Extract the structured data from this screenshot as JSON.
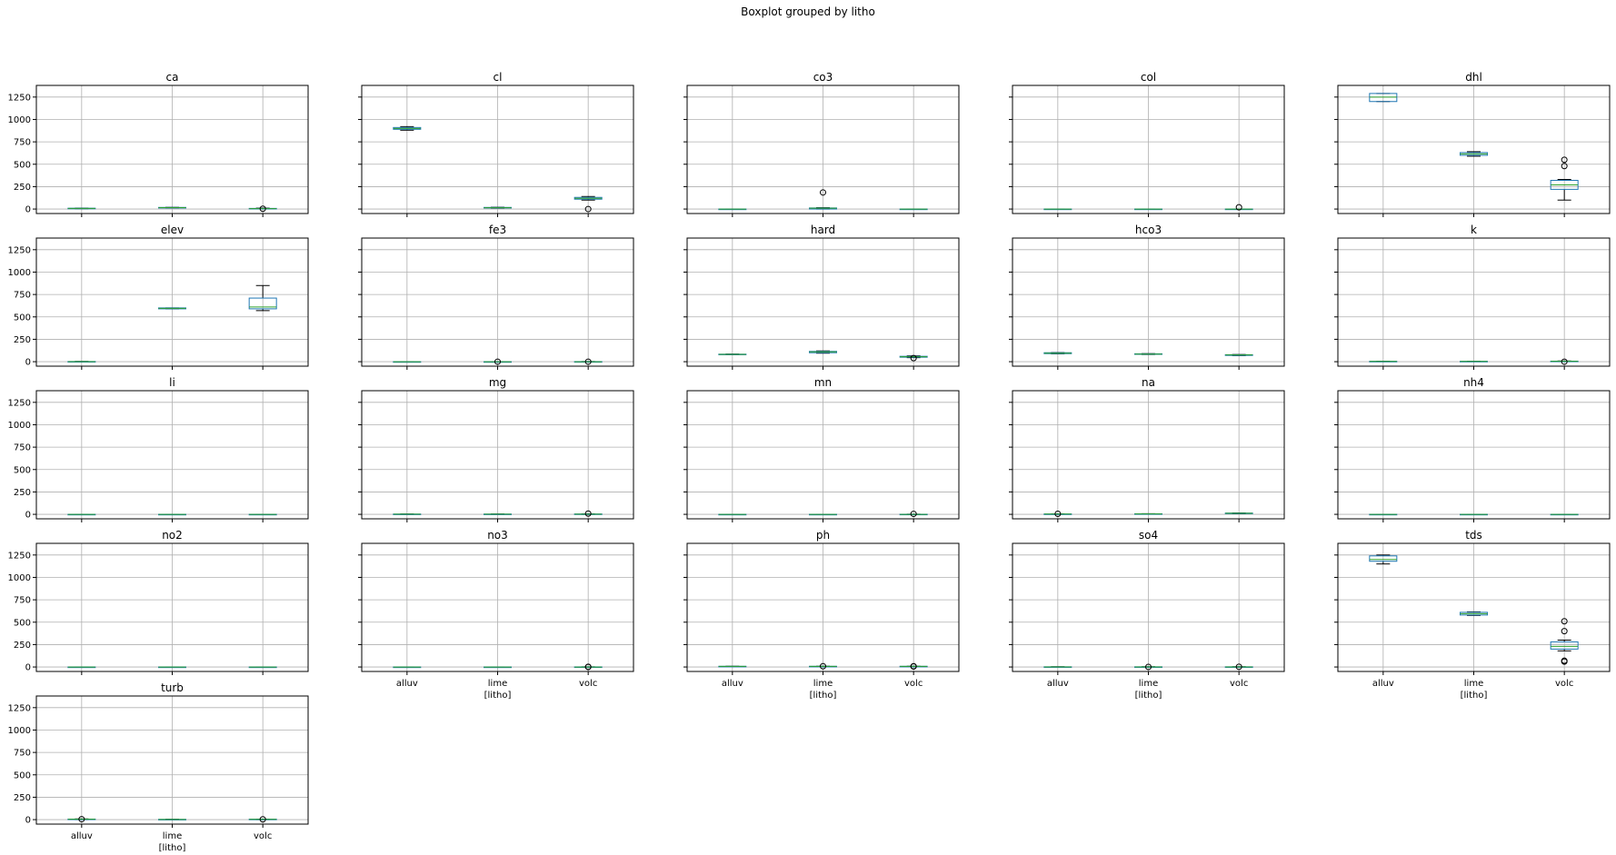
{
  "chart_data": {
    "type": "boxplot",
    "suptitle": "Boxplot grouped by litho",
    "xlabel": "[litho]",
    "categories": [
      "alluv",
      "lime",
      "volc"
    ],
    "ylim": [
      -50,
      1380
    ],
    "yticks": [
      0,
      250,
      500,
      750,
      1000,
      1250
    ],
    "grid": true,
    "colors": {
      "box": "#1f77b4",
      "median": "#2ca02c",
      "whisker": "#000000",
      "flier": "#000000",
      "grid": "#b0b0b0"
    },
    "panels": [
      {
        "title": "ca",
        "boxes": [
          {
            "q1": 5,
            "median": 7,
            "q3": 9,
            "whislo": 4,
            "whishi": 10,
            "fliers": []
          },
          {
            "q1": 14,
            "median": 16,
            "q3": 18,
            "whislo": 13,
            "whishi": 19,
            "fliers": []
          },
          {
            "q1": 3,
            "median": 5,
            "q3": 7,
            "whislo": 1,
            "whishi": 10,
            "fliers": [
              3
            ]
          }
        ]
      },
      {
        "title": "cl",
        "boxes": [
          {
            "q1": 890,
            "median": 900,
            "q3": 910,
            "whislo": 880,
            "whishi": 920,
            "fliers": []
          },
          {
            "q1": 12,
            "median": 15,
            "q3": 18,
            "whislo": 10,
            "whishi": 20,
            "fliers": []
          },
          {
            "q1": 110,
            "median": 120,
            "q3": 130,
            "whislo": 100,
            "whishi": 140,
            "fliers": [
              0
            ]
          }
        ]
      },
      {
        "title": "co3",
        "boxes": [
          {
            "q1": 0,
            "median": 0,
            "q3": 0,
            "whislo": 0,
            "whishi": 0,
            "fliers": []
          },
          {
            "q1": 0,
            "median": 10,
            "q3": 12,
            "whislo": 0,
            "whishi": 15,
            "fliers": [
              185
            ]
          },
          {
            "q1": 0,
            "median": 0,
            "q3": 0,
            "whislo": 0,
            "whishi": 0,
            "fliers": []
          }
        ]
      },
      {
        "title": "col",
        "boxes": [
          {
            "q1": 0,
            "median": 0,
            "q3": 0,
            "whislo": 0,
            "whishi": 0,
            "fliers": []
          },
          {
            "q1": 0,
            "median": 0,
            "q3": 0,
            "whislo": 0,
            "whishi": 0,
            "fliers": []
          },
          {
            "q1": 0,
            "median": 0,
            "q3": 0,
            "whislo": 0,
            "whishi": 0,
            "fliers": [
              20
            ]
          }
        ]
      },
      {
        "title": "dhl",
        "boxes": [
          {
            "q1": 1200,
            "median": 1250,
            "q3": 1290,
            "whislo": 1200,
            "whishi": 1290,
            "fliers": []
          },
          {
            "q1": 600,
            "median": 615,
            "q3": 630,
            "whislo": 590,
            "whishi": 640,
            "fliers": []
          },
          {
            "q1": 220,
            "median": 270,
            "q3": 320,
            "whislo": 100,
            "whishi": 330,
            "fliers": [
              480,
              550
            ]
          }
        ]
      },
      {
        "title": "elev",
        "boxes": [
          {
            "q1": 0,
            "median": 1,
            "q3": 2,
            "whislo": 0,
            "whishi": 3,
            "fliers": []
          },
          {
            "q1": 590,
            "median": 595,
            "q3": 600,
            "whislo": 590,
            "whishi": 600,
            "fliers": []
          },
          {
            "q1": 590,
            "median": 610,
            "q3": 710,
            "whislo": 570,
            "whishi": 850,
            "fliers": []
          }
        ]
      },
      {
        "title": "fe3",
        "boxes": [
          {
            "q1": 0,
            "median": 0,
            "q3": 0,
            "whislo": 0,
            "whishi": 0,
            "fliers": []
          },
          {
            "q1": 0,
            "median": 0,
            "q3": 0,
            "whislo": 0,
            "whishi": 0,
            "fliers": [
              0
            ]
          },
          {
            "q1": 0,
            "median": 0,
            "q3": 1,
            "whislo": 0,
            "whishi": 2,
            "fliers": [
              0
            ]
          }
        ]
      },
      {
        "title": "hard",
        "boxes": [
          {
            "q1": 80,
            "median": 82,
            "q3": 84,
            "whislo": 80,
            "whishi": 85,
            "fliers": []
          },
          {
            "q1": 100,
            "median": 110,
            "q3": 115,
            "whislo": 95,
            "whishi": 120,
            "fliers": []
          },
          {
            "q1": 50,
            "median": 55,
            "q3": 60,
            "whislo": 45,
            "whishi": 65,
            "fliers": [
              40
            ]
          }
        ]
      },
      {
        "title": "hco3",
        "boxes": [
          {
            "q1": 90,
            "median": 95,
            "q3": 100,
            "whislo": 88,
            "whishi": 102,
            "fliers": []
          },
          {
            "q1": 82,
            "median": 85,
            "q3": 88,
            "whislo": 80,
            "whishi": 90,
            "fliers": []
          },
          {
            "q1": 70,
            "median": 75,
            "q3": 78,
            "whislo": 68,
            "whishi": 80,
            "fliers": []
          }
        ]
      },
      {
        "title": "k",
        "boxes": [
          {
            "q1": 2,
            "median": 3,
            "q3": 4,
            "whislo": 1,
            "whishi": 5,
            "fliers": []
          },
          {
            "q1": 2,
            "median": 3,
            "q3": 4,
            "whislo": 1,
            "whishi": 5,
            "fliers": []
          },
          {
            "q1": 2,
            "median": 4,
            "q3": 6,
            "whislo": 1,
            "whishi": 8,
            "fliers": [
              0
            ]
          }
        ]
      },
      {
        "title": "li",
        "boxes": [
          {
            "q1": 0,
            "median": 0,
            "q3": 0,
            "whislo": 0,
            "whishi": 0,
            "fliers": []
          },
          {
            "q1": 0,
            "median": 0,
            "q3": 0,
            "whislo": 0,
            "whishi": 0,
            "fliers": []
          },
          {
            "q1": 0,
            "median": 0,
            "q3": 0,
            "whislo": 0,
            "whishi": 0,
            "fliers": []
          }
        ]
      },
      {
        "title": "mg",
        "boxes": [
          {
            "q1": 1,
            "median": 2,
            "q3": 3,
            "whislo": 0,
            "whishi": 4,
            "fliers": []
          },
          {
            "q1": 1,
            "median": 2,
            "q3": 3,
            "whislo": 0,
            "whishi": 4,
            "fliers": []
          },
          {
            "q1": 1,
            "median": 2,
            "q3": 4,
            "whislo": 0,
            "whishi": 5,
            "fliers": [
              8
            ]
          }
        ]
      },
      {
        "title": "mn",
        "boxes": [
          {
            "q1": 0,
            "median": 0,
            "q3": 0,
            "whislo": 0,
            "whishi": 0,
            "fliers": []
          },
          {
            "q1": 0,
            "median": 0,
            "q3": 0,
            "whislo": 0,
            "whishi": 0,
            "fliers": []
          },
          {
            "q1": 0,
            "median": 0,
            "q3": 1,
            "whislo": 0,
            "whishi": 2,
            "fliers": [
              5
            ]
          }
        ]
      },
      {
        "title": "na",
        "boxes": [
          {
            "q1": 2,
            "median": 3,
            "q3": 4,
            "whislo": 1,
            "whishi": 5,
            "fliers": [
              6
            ]
          },
          {
            "q1": 4,
            "median": 5,
            "q3": 6,
            "whislo": 3,
            "whishi": 7,
            "fliers": []
          },
          {
            "q1": 10,
            "median": 12,
            "q3": 14,
            "whislo": 8,
            "whishi": 16,
            "fliers": []
          }
        ]
      },
      {
        "title": "nh4",
        "boxes": [
          {
            "q1": 0,
            "median": 0,
            "q3": 0,
            "whislo": 0,
            "whishi": 0,
            "fliers": []
          },
          {
            "q1": 0,
            "median": 0,
            "q3": 0,
            "whislo": 0,
            "whishi": 0,
            "fliers": []
          },
          {
            "q1": 0,
            "median": 0,
            "q3": 0,
            "whislo": 0,
            "whishi": 0,
            "fliers": []
          }
        ]
      },
      {
        "title": "no2",
        "boxes": [
          {
            "q1": 0,
            "median": 0,
            "q3": 0,
            "whislo": 0,
            "whishi": 0,
            "fliers": []
          },
          {
            "q1": 0,
            "median": 0,
            "q3": 0,
            "whislo": 0,
            "whishi": 0,
            "fliers": []
          },
          {
            "q1": 0,
            "median": 0,
            "q3": 0,
            "whislo": 0,
            "whishi": 0,
            "fliers": []
          }
        ]
      },
      {
        "title": "no3",
        "boxes": [
          {
            "q1": 0,
            "median": 0,
            "q3": 0,
            "whislo": 0,
            "whishi": 0,
            "fliers": []
          },
          {
            "q1": 0,
            "median": 0,
            "q3": 0,
            "whislo": 0,
            "whishi": 0,
            "fliers": []
          },
          {
            "q1": 0,
            "median": 0,
            "q3": 1,
            "whislo": 0,
            "whishi": 2,
            "fliers": [
              0,
              2
            ]
          }
        ]
      },
      {
        "title": "ph",
        "boxes": [
          {
            "q1": 6,
            "median": 7,
            "q3": 7.5,
            "whislo": 6,
            "whishi": 8,
            "fliers": []
          },
          {
            "q1": 6.5,
            "median": 7,
            "q3": 7.5,
            "whislo": 6,
            "whishi": 8,
            "fliers": [
              8
            ]
          },
          {
            "q1": 6.5,
            "median": 7,
            "q3": 7.5,
            "whislo": 6,
            "whishi": 8,
            "fliers": [
              8,
              6
            ]
          }
        ]
      },
      {
        "title": "so4",
        "boxes": [
          {
            "q1": 0,
            "median": 1,
            "q3": 2,
            "whislo": 0,
            "whishi": 3,
            "fliers": []
          },
          {
            "q1": 0,
            "median": 1,
            "q3": 2,
            "whislo": 0,
            "whishi": 3,
            "fliers": [
              1
            ]
          },
          {
            "q1": 0,
            "median": 1,
            "q3": 2,
            "whislo": 0,
            "whishi": 3,
            "fliers": [
              2
            ]
          }
        ]
      },
      {
        "title": "tds",
        "boxes": [
          {
            "q1": 1180,
            "median": 1200,
            "q3": 1240,
            "whislo": 1150,
            "whishi": 1250,
            "fliers": []
          },
          {
            "q1": 580,
            "median": 595,
            "q3": 610,
            "whislo": 575,
            "whishi": 615,
            "fliers": []
          },
          {
            "q1": 200,
            "median": 230,
            "q3": 280,
            "whislo": 180,
            "whishi": 300,
            "fliers": [
              400,
              510,
              60,
              70
            ]
          }
        ]
      },
      {
        "title": "turb",
        "boxes": [
          {
            "q1": 2,
            "median": 4,
            "q3": 6,
            "whislo": 0,
            "whishi": 8,
            "fliers": [
              5
            ]
          },
          {
            "q1": 1,
            "median": 2,
            "q3": 3,
            "whislo": 0,
            "whishi": 4,
            "fliers": []
          },
          {
            "q1": 1,
            "median": 3,
            "q3": 5,
            "whislo": 0,
            "whishi": 6,
            "fliers": [
              3
            ]
          }
        ]
      }
    ]
  }
}
